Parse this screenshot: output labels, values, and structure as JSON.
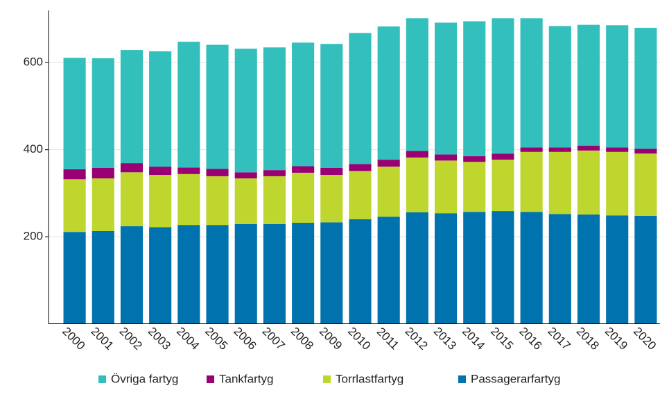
{
  "chart_data": {
    "type": "stacked_bar",
    "categories": [
      "2000",
      "2001",
      "2002",
      "2003",
      "2004",
      "2005",
      "2006",
      "2007",
      "2008",
      "2009",
      "2010",
      "2011",
      "2012",
      "2013",
      "2014",
      "2015",
      "2016",
      "2017",
      "2018",
      "2019",
      "2020"
    ],
    "series": [
      {
        "name": "Övriga fartyg",
        "color": "#33bfbb",
        "values": [
          256,
          252,
          260,
          265,
          289,
          285,
          284,
          282,
          284,
          285,
          301,
          306,
          305,
          303,
          310,
          311,
          297,
          279,
          278,
          281,
          278
        ]
      },
      {
        "name": "Tankfartyg",
        "color": "#990073",
        "values": [
          23,
          24,
          21,
          19,
          15,
          17,
          14,
          14,
          15,
          16,
          16,
          16,
          15,
          14,
          13,
          14,
          10,
          10,
          11,
          10,
          11
        ]
      },
      {
        "name": "Torrlastfartyg",
        "color": "#bfd62f",
        "values": [
          121,
          121,
          124,
          120,
          117,
          112,
          105,
          110,
          115,
          109,
          111,
          115,
          126,
          121,
          115,
          118,
          138,
          143,
          147,
          146,
          143
        ]
      },
      {
        "name": "Passagerarfartyg",
        "color": "#0072ae",
        "values": [
          211,
          213,
          224,
          222,
          227,
          227,
          229,
          229,
          232,
          233,
          240,
          246,
          256,
          254,
          257,
          259,
          257,
          252,
          251,
          249,
          248
        ]
      }
    ],
    "ylim": [
      0,
      720
    ],
    "yticks": [
      200,
      400,
      600
    ],
    "grid": true,
    "legend": "bottom"
  }
}
